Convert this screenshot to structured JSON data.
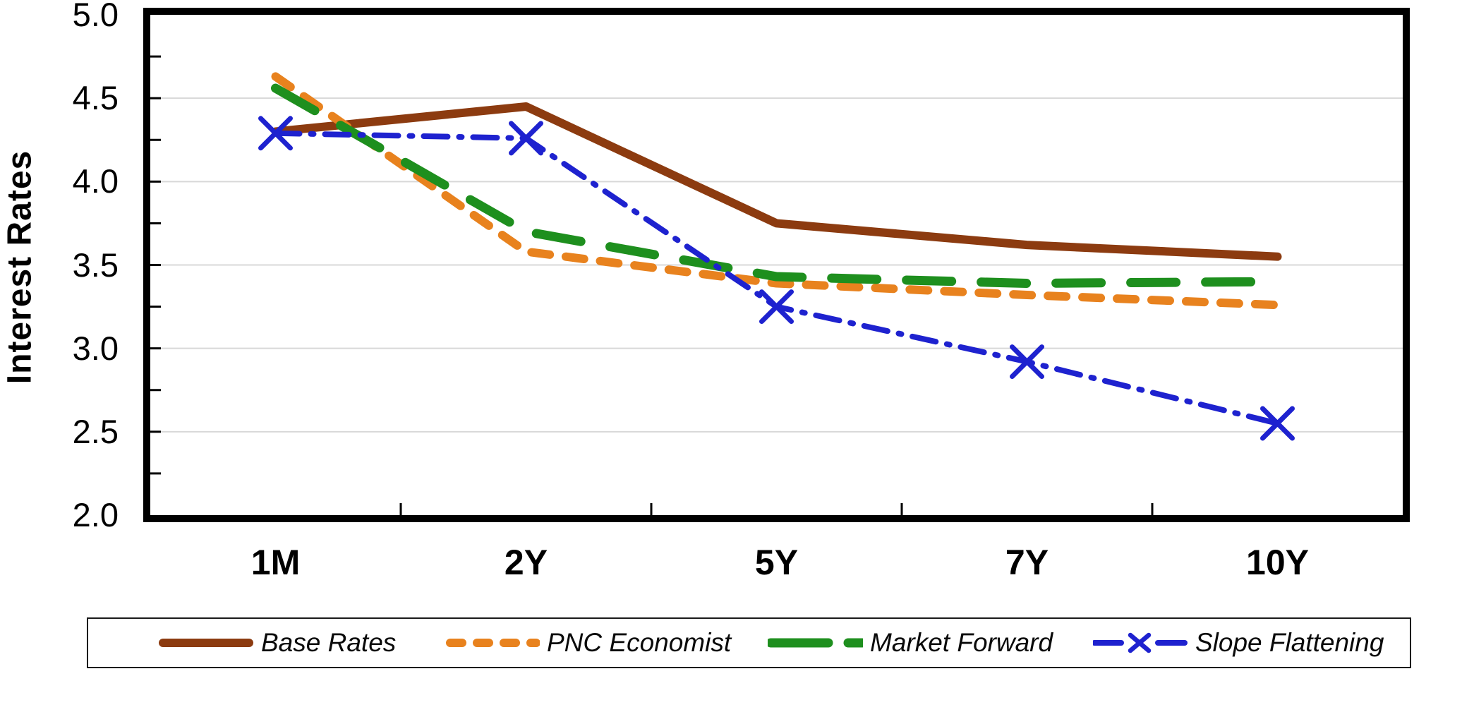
{
  "chart_data": {
    "type": "line",
    "title": "",
    "ylabel": "Interest Rates",
    "xlabel": "",
    "categories": [
      "1M",
      "2Y",
      "5Y",
      "7Y",
      "10Y"
    ],
    "series": [
      {
        "name": "Base Rates",
        "values": [
          4.3,
          4.45,
          3.75,
          3.62,
          3.55
        ],
        "color": "#8C3B10",
        "style": "solid",
        "marker": "none"
      },
      {
        "name": "PNC Economist",
        "values": [
          4.63,
          3.58,
          3.39,
          3.32,
          3.26
        ],
        "color": "#E8821E",
        "style": "dashed",
        "marker": "none"
      },
      {
        "name": "Market Forward",
        "values": [
          4.56,
          3.7,
          3.43,
          3.39,
          3.4
        ],
        "color": "#1E8F1E",
        "style": "longdash",
        "marker": "none"
      },
      {
        "name": "Slope Flattening",
        "values": [
          4.29,
          4.26,
          3.25,
          2.92,
          2.55
        ],
        "color": "#1E22CF",
        "style": "dashdot",
        "marker": "x"
      }
    ],
    "ylim": [
      2.0,
      5.0
    ],
    "y_major_step": 0.5,
    "y_minor_step": 0.25,
    "y_tick_labels": [
      "5.0",
      "4.5",
      "4.0",
      "3.5",
      "3.0",
      "2.5",
      "2.0"
    ],
    "grid": true,
    "gridline_color": "#D8D8D8",
    "axis_color": "#000000",
    "legend_position": "bottom"
  }
}
